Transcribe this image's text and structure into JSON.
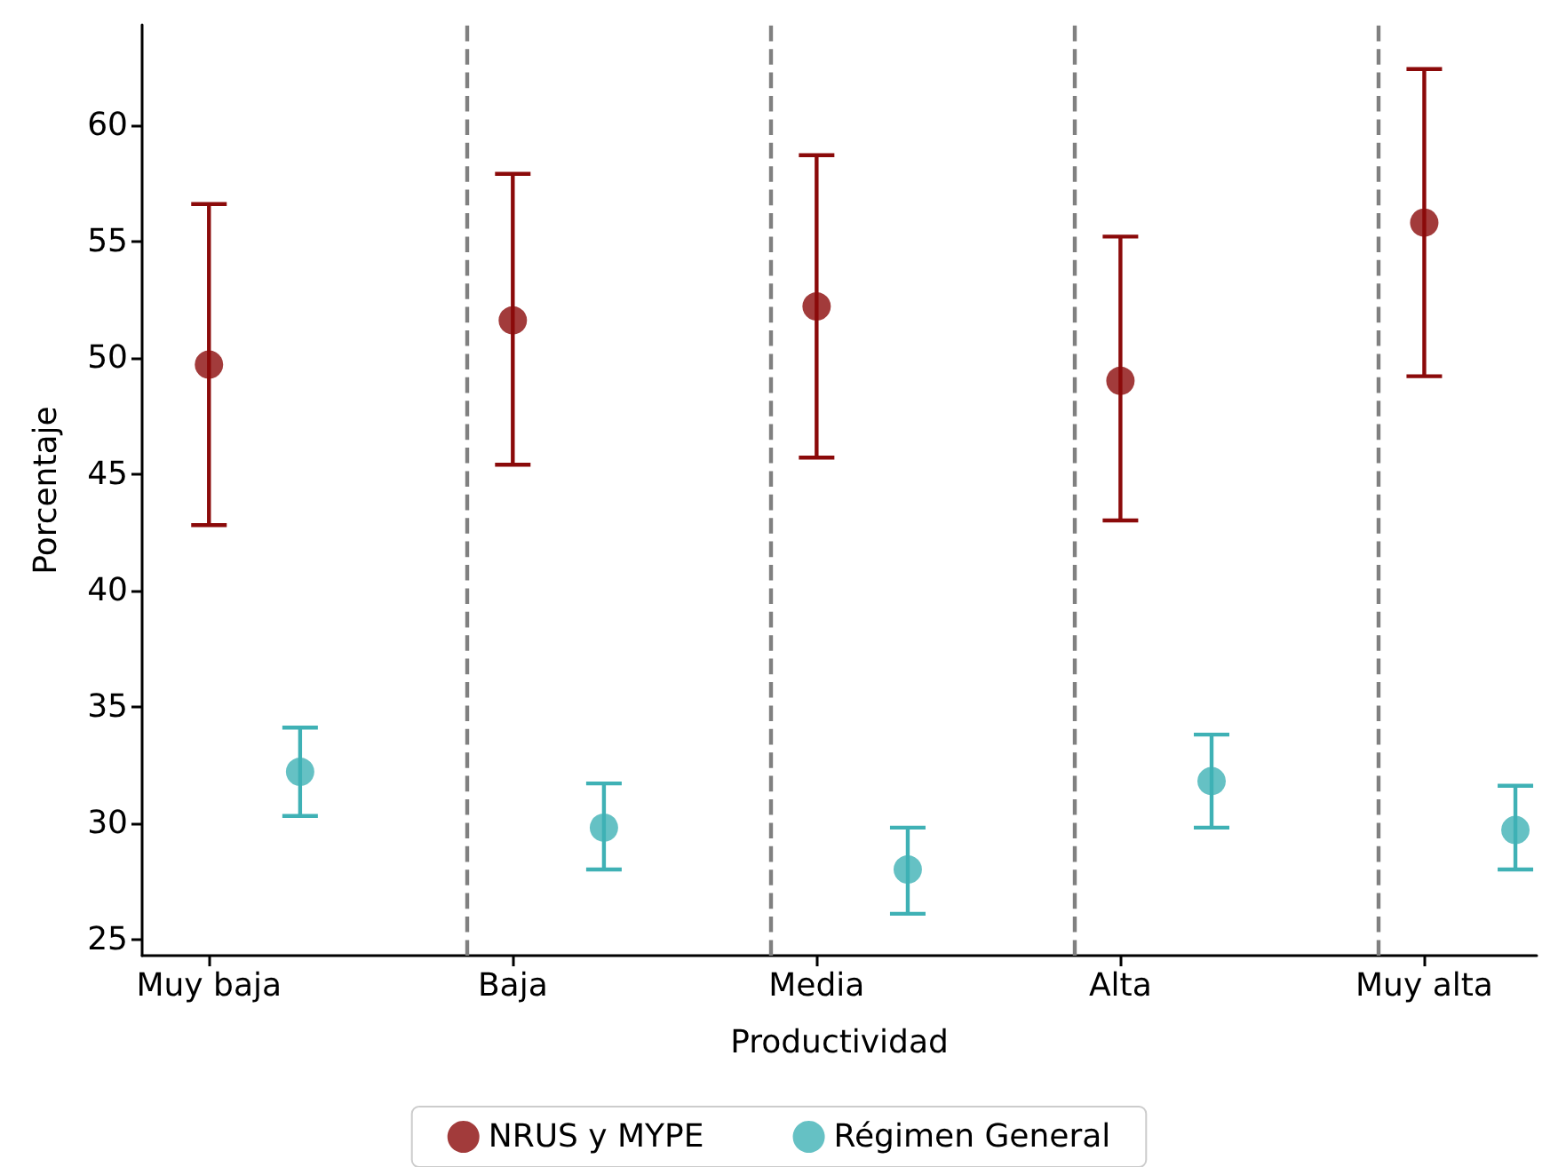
{
  "chart_data": {
    "type": "scatter",
    "xlabel": "Productividad",
    "ylabel": "Porcentaje",
    "categories": [
      "Muy baja",
      "Baja",
      "Media",
      "Alta",
      "Muy alta"
    ],
    "ylim": [
      24.3,
      64.3
    ],
    "yticks": [
      25,
      30,
      35,
      40,
      45,
      50,
      55,
      60
    ],
    "series": [
      {
        "name": "NRUS y MYPE",
        "color": "#8b0a0a",
        "values": [
          49.7,
          51.6,
          52.2,
          49.0,
          55.8
        ],
        "errors": [
          [
            42.8,
            56.6
          ],
          [
            45.4,
            57.9
          ],
          [
            45.7,
            58.7
          ],
          [
            43.0,
            55.2
          ],
          [
            49.2,
            62.4
          ]
        ]
      },
      {
        "name": "Régimen General",
        "color": "#3fb1b5",
        "values": [
          32.2,
          29.8,
          28.0,
          31.8,
          29.7
        ],
        "errors": [
          [
            30.3,
            34.1
          ],
          [
            28.0,
            31.7
          ],
          [
            26.1,
            29.8
          ],
          [
            29.8,
            33.8
          ],
          [
            28.0,
            31.6
          ]
        ]
      }
    ],
    "ref_lines": [
      {
        "axis": "x",
        "value": "Baja",
        "color": "#808080",
        "line_style": "dashed"
      },
      {
        "axis": "x",
        "value": "Media",
        "color": "#808080",
        "line_style": "dashed"
      },
      {
        "axis": "x",
        "value": "Alta",
        "color": "#808080",
        "line_style": "dashed"
      },
      {
        "axis": "x",
        "value": "Muy alta",
        "color": "#808080",
        "line_style": "dashed"
      }
    ],
    "marker": "circle",
    "grid": false,
    "legend": "bottom"
  }
}
